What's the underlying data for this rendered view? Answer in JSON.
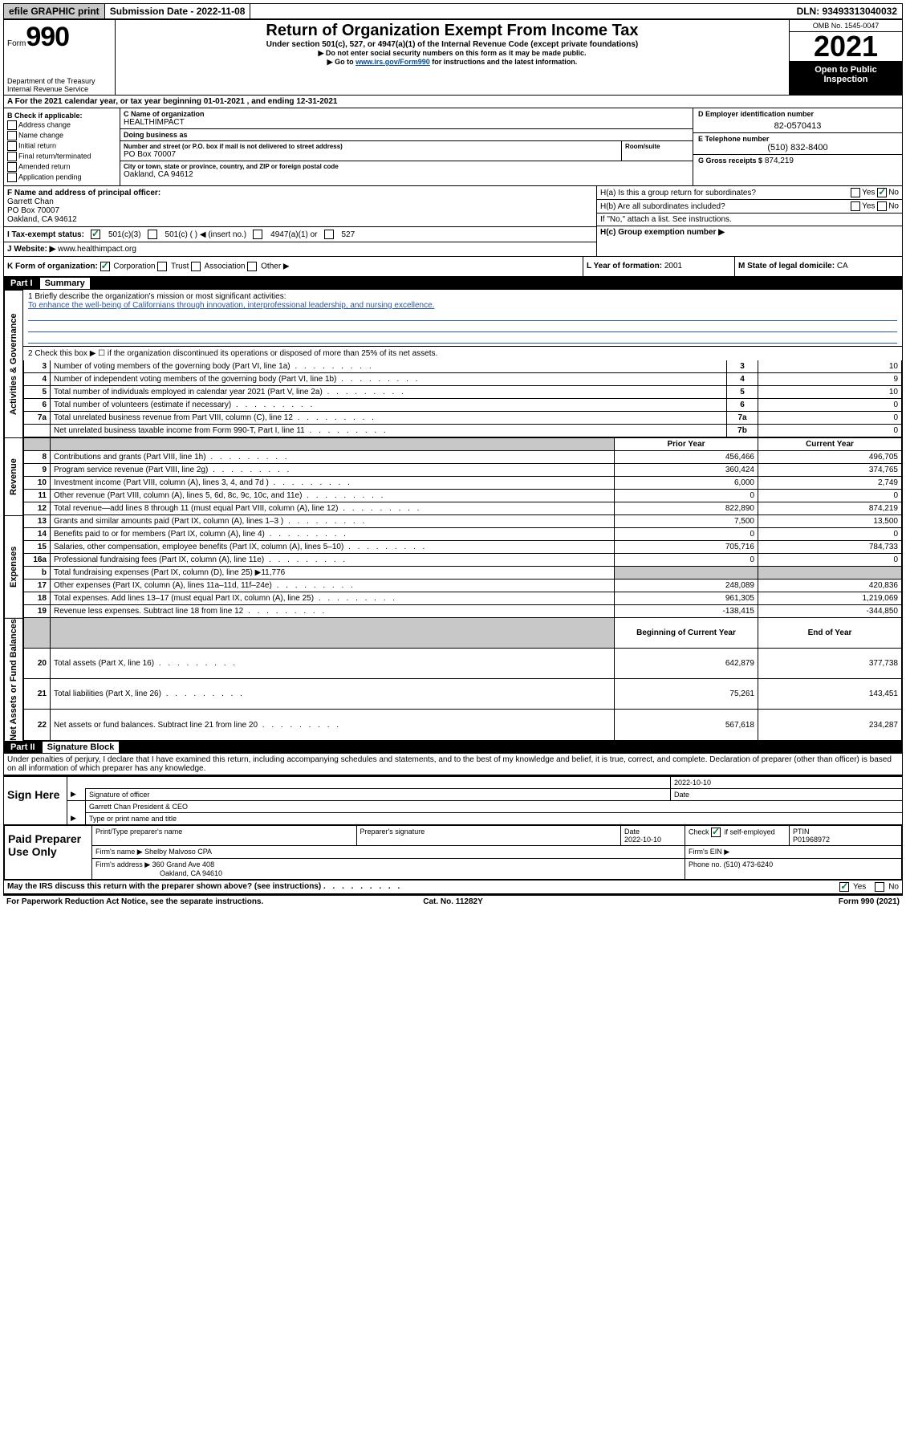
{
  "topbar": {
    "efile": "efile GRAPHIC print",
    "submission_label": "Submission Date - 2022-11-08",
    "dln": "DLN: 93493313040032"
  },
  "header": {
    "form_word": "Form",
    "form_number": "990",
    "title": "Return of Organization Exempt From Income Tax",
    "sub1": "Under section 501(c), 527, or 4947(a)(1) of the Internal Revenue Code (except private foundations)",
    "sub2": "▶ Do not enter social security numbers on this form as it may be made public.",
    "sub3_pre": "▶ Go to ",
    "sub3_link": "www.irs.gov/Form990",
    "sub3_post": " for instructions and the latest information.",
    "dept": "Department of the Treasury",
    "irs": "Internal Revenue Service",
    "omb": "OMB No. 1545-0047",
    "year": "2021",
    "open_public": "Open to Public Inspection"
  },
  "row_a": "A For the 2021 calendar year, or tax year beginning 01-01-2021    , and ending 12-31-2021",
  "sec_b": {
    "header": "B Check if applicable:",
    "items": [
      "Address change",
      "Name change",
      "Initial return",
      "Final return/terminated",
      "Amended return",
      "Application pending"
    ]
  },
  "sec_c": {
    "name_label": "C Name of organization",
    "name": "HEALTHIMPACT",
    "dba_label": "Doing business as",
    "dba": "",
    "addr_label": "Number and street (or P.O. box if mail is not delivered to street address)",
    "addr": "PO Box 70007",
    "room_label": "Room/suite",
    "city_label": "City or town, state or province, country, and ZIP or foreign postal code",
    "city": "Oakland, CA  94612"
  },
  "sec_d": {
    "ein_label": "D Employer identification number",
    "ein": "82-0570413",
    "phone_label": "E Telephone number",
    "phone": "(510) 832-8400",
    "gross_label": "G Gross receipts $",
    "gross": "874,219"
  },
  "sec_f": {
    "label": "F  Name and address of principal officer:",
    "name": "Garrett Chan",
    "line2": "PO Box 70007",
    "line3": "Oakland, CA  94612"
  },
  "sec_i": {
    "label": "I    Tax-exempt status:",
    "opt1": "501(c)(3)",
    "opt2": "501(c) (  ) ◀ (insert no.)",
    "opt3": "4947(a)(1) or",
    "opt4": "527"
  },
  "sec_j": {
    "label": "J   Website: ▶",
    "val": "www.healthimpact.org"
  },
  "sec_h": {
    "ha": "H(a)  Is this a group return for subordinates?",
    "hb": "H(b)  Are all subordinates included?",
    "hb_note": "If \"No,\" attach a list. See instructions.",
    "hc": "H(c)  Group exemption number ▶",
    "yes": "Yes",
    "no": "No"
  },
  "sec_k": {
    "label": "K Form of organization:",
    "o1": "Corporation",
    "o2": "Trust",
    "o3": "Association",
    "o4": "Other ▶"
  },
  "sec_l": {
    "label": "L Year of formation:",
    "val": "2001"
  },
  "sec_m": {
    "label": "M State of legal domicile:",
    "val": "CA"
  },
  "part1": {
    "header_part": "Part I",
    "header_label": "Summary",
    "q1_label": "1  Briefly describe the organization's mission or most significant activities:",
    "q1_val": "To enhance the well-being of Californians through innovation, interprofessional leadership, and nursing excellence.",
    "q2": "2    Check this box ▶ ☐  if the organization discontinued its operations or disposed of more than 25% of its net assets.",
    "rows_gov": [
      {
        "n": "3",
        "desc": "Number of voting members of the governing body (Part VI, line 1a)",
        "box": "3",
        "cur": "10"
      },
      {
        "n": "4",
        "desc": "Number of independent voting members of the governing body (Part VI, line 1b)",
        "box": "4",
        "cur": "9"
      },
      {
        "n": "5",
        "desc": "Total number of individuals employed in calendar year 2021 (Part V, line 2a)",
        "box": "5",
        "cur": "10"
      },
      {
        "n": "6",
        "desc": "Total number of volunteers (estimate if necessary)",
        "box": "6",
        "cur": "0"
      },
      {
        "n": "7a",
        "desc": "Total unrelated business revenue from Part VIII, column (C), line 12",
        "box": "7a",
        "cur": "0"
      },
      {
        "n": "",
        "desc": "Net unrelated business taxable income from Form 990-T, Part I, line 11",
        "box": "7b",
        "cur": "0"
      }
    ],
    "col_prior": "Prior Year",
    "col_current": "Current Year",
    "rows_rev": [
      {
        "n": "8",
        "desc": "Contributions and grants (Part VIII, line 1h)",
        "p": "456,466",
        "c": "496,705"
      },
      {
        "n": "9",
        "desc": "Program service revenue (Part VIII, line 2g)",
        "p": "360,424",
        "c": "374,765"
      },
      {
        "n": "10",
        "desc": "Investment income (Part VIII, column (A), lines 3, 4, and 7d )",
        "p": "6,000",
        "c": "2,749"
      },
      {
        "n": "11",
        "desc": "Other revenue (Part VIII, column (A), lines 5, 6d, 8c, 9c, 10c, and 11e)",
        "p": "0",
        "c": "0"
      },
      {
        "n": "12",
        "desc": "Total revenue—add lines 8 through 11 (must equal Part VIII, column (A), line 12)",
        "p": "822,890",
        "c": "874,219"
      }
    ],
    "rows_exp": [
      {
        "n": "13",
        "desc": "Grants and similar amounts paid (Part IX, column (A), lines 1–3 )",
        "p": "7,500",
        "c": "13,500"
      },
      {
        "n": "14",
        "desc": "Benefits paid to or for members (Part IX, column (A), line 4)",
        "p": "0",
        "c": "0"
      },
      {
        "n": "15",
        "desc": "Salaries, other compensation, employee benefits (Part IX, column (A), lines 5–10)",
        "p": "705,716",
        "c": "784,733"
      },
      {
        "n": "16a",
        "desc": "Professional fundraising fees (Part IX, column (A), line 11e)",
        "p": "0",
        "c": "0"
      },
      {
        "n": "b",
        "desc": "Total fundraising expenses (Part IX, column (D), line 25) ▶11,776",
        "p": "",
        "c": "",
        "grey": true
      },
      {
        "n": "17",
        "desc": "Other expenses (Part IX, column (A), lines 11a–11d, 11f–24e)",
        "p": "248,089",
        "c": "420,836"
      },
      {
        "n": "18",
        "desc": "Total expenses. Add lines 13–17 (must equal Part IX, column (A), line 25)",
        "p": "961,305",
        "c": "1,219,069"
      },
      {
        "n": "19",
        "desc": "Revenue less expenses. Subtract line 18 from line 12",
        "p": "-138,415",
        "c": "-344,850"
      }
    ],
    "col_begin": "Beginning of Current Year",
    "col_end": "End of Year",
    "rows_net": [
      {
        "n": "20",
        "desc": "Total assets (Part X, line 16)",
        "p": "642,879",
        "c": "377,738"
      },
      {
        "n": "21",
        "desc": "Total liabilities (Part X, line 26)",
        "p": "75,261",
        "c": "143,451"
      },
      {
        "n": "22",
        "desc": "Net assets or fund balances. Subtract line 21 from line 20",
        "p": "567,618",
        "c": "234,287"
      }
    ],
    "stub_gov": "Activities & Governance",
    "stub_rev": "Revenue",
    "stub_exp": "Expenses",
    "stub_net": "Net Assets or Fund Balances"
  },
  "part2": {
    "header_part": "Part II",
    "header_label": "Signature Block",
    "decl": "Under penalties of perjury, I declare that I have examined this return, including accompanying schedules and statements, and to the best of my knowledge and belief, it is true, correct, and complete. Declaration of preparer (other than officer) is based on all information of which preparer has any knowledge.",
    "sign_here": "Sign Here",
    "sig_officer": "Signature of officer",
    "sig_date": "2022-10-10",
    "date_label": "Date",
    "type_name": "Garrett Chan  President & CEO",
    "type_label": "Type or print name and title"
  },
  "paid": {
    "label": "Paid Preparer Use Only",
    "h1": "Print/Type preparer's name",
    "h2": "Preparer's signature",
    "h3": "Date",
    "h4_pre": "Check",
    "h4_post": "if self-employed",
    "h5": "PTIN",
    "date": "2022-10-10",
    "ptin": "P01968972",
    "firm_name_label": "Firm's name     ▶",
    "firm_name": "Shelby Malvoso CPA",
    "ein_label": "Firm's EIN ▶",
    "firm_addr_label": "Firm's address ▶",
    "firm_addr1": "360 Grand Ave 408",
    "firm_addr2": "Oakland, CA  94610",
    "phone_label": "Phone no.",
    "phone": "(510) 473-6240"
  },
  "footer": {
    "irs_discuss": "May the IRS discuss this return with the preparer shown above? (see instructions)",
    "yes": "Yes",
    "no": "No",
    "paperwork": "For Paperwork Reduction Act Notice, see the separate instructions.",
    "catno": "Cat. No. 11282Y",
    "formno": "Form 990 (2021)"
  },
  "colors": {
    "link": "#004b8d",
    "accent_blue": "#2a5599",
    "check_green": "#0b7a3a",
    "grey_btn": "#c8c8c8",
    "black": "#000000",
    "white": "#ffffff"
  }
}
